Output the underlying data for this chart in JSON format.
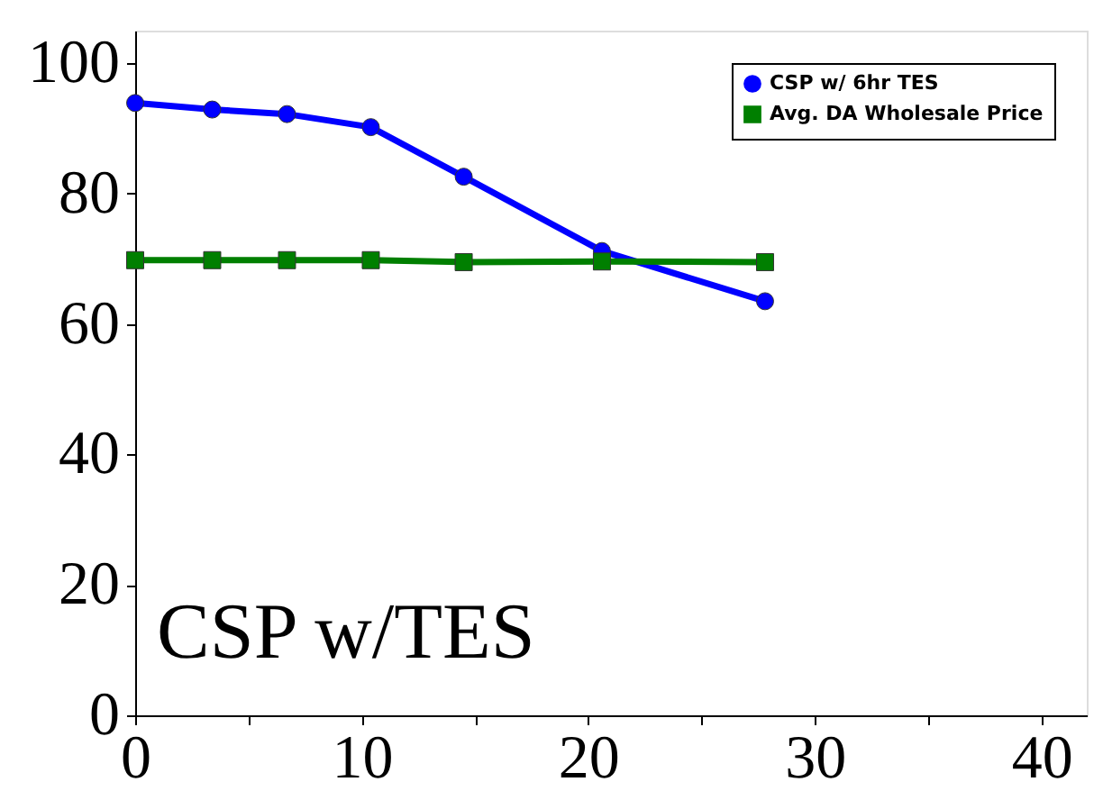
{
  "chart_data": {
    "type": "line",
    "series": [
      {
        "name": "CSP w/ 6hr TES",
        "color": "#0000ff",
        "marker": "circle",
        "x": [
          0,
          3.4,
          6.7,
          10.4,
          14.5,
          20.6,
          27.8
        ],
        "values": [
          93.9,
          92.9,
          92.2,
          90.2,
          82.6,
          71.2,
          63.5
        ]
      },
      {
        "name": "Avg. DA Wholesale Price",
        "color": "#007f00",
        "marker": "square",
        "x": [
          0,
          3.4,
          6.7,
          10.4,
          14.5,
          20.6,
          27.8
        ],
        "values": [
          69.8,
          69.8,
          69.8,
          69.8,
          69.5,
          69.6,
          69.5
        ]
      }
    ],
    "xlim": [
      0,
      42
    ],
    "ylim": [
      0,
      105
    ],
    "xticks": [
      0,
      {
        "value": 5,
        "label": null
      },
      10,
      {
        "value": 15,
        "label": null
      },
      20,
      {
        "value": 25,
        "label": null
      },
      30,
      {
        "value": 35,
        "label": null
      },
      40
    ],
    "yticks": [
      0,
      20,
      40,
      60,
      80,
      100
    ],
    "annotations": [
      "CSP w/TES"
    ],
    "legend": "top right",
    "grid": false,
    "line_style": "solid"
  }
}
